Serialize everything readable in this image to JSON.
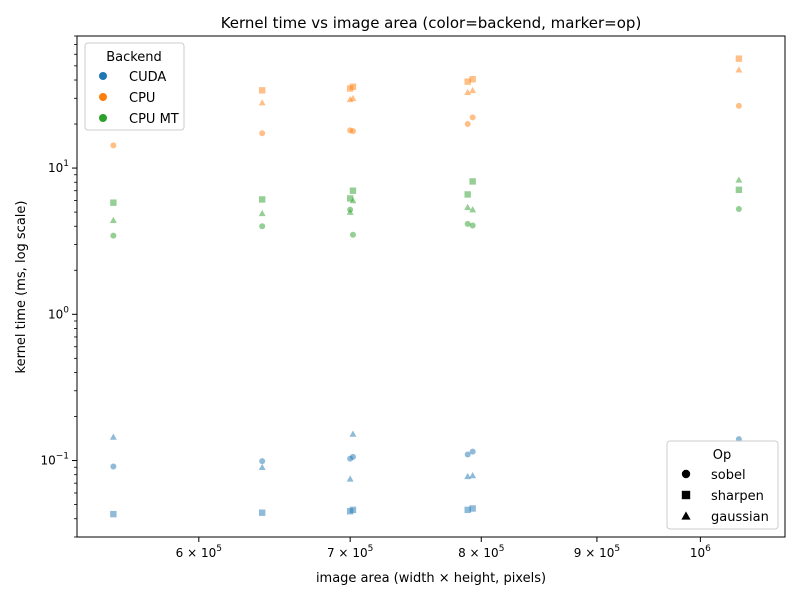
{
  "chart_data": {
    "type": "scatter",
    "title": "Kernel time vs image area (color=backend, marker=op)",
    "xlabel": "image area (width × height, pixels)",
    "ylabel": "kernel time (ms, log scale)",
    "xscale": "log",
    "yscale": "log",
    "xlim": [
      530000,
      1090000
    ],
    "ylim": [
      0.03,
      80
    ],
    "grid": false,
    "x_ticks": [
      {
        "value": 600000,
        "label": "6 × 10^5"
      },
      {
        "value": 700000,
        "label": "7 × 10^5"
      },
      {
        "value": 800000,
        "label": "8 × 10^5"
      },
      {
        "value": 900000,
        "label": "9 × 10^5"
      },
      {
        "value": 1000000,
        "label": "10^6"
      }
    ],
    "y_ticks": [
      {
        "value": 0.1,
        "label": "10^-1"
      },
      {
        "value": 1,
        "label": "10^0"
      },
      {
        "value": 10,
        "label": "10^1"
      }
    ],
    "legend_backend": {
      "title": "Backend",
      "placement": "upper-left",
      "entries": [
        {
          "label": "CUDA",
          "color": "#1f77b4"
        },
        {
          "label": "CPU",
          "color": "#ff7f0e"
        },
        {
          "label": "CPU MT",
          "color": "#2ca02c"
        }
      ]
    },
    "legend_op": {
      "title": "Op",
      "placement": "lower-right",
      "entries": [
        {
          "label": "sobel",
          "marker": "circle"
        },
        {
          "label": "sharpen",
          "marker": "square"
        },
        {
          "label": "gaussian",
          "marker": "triangle"
        }
      ]
    },
    "series": [
      {
        "backend": "CUDA",
        "op": "sobel",
        "color": "#1f77b4",
        "marker": "circle",
        "x": [
          550000,
          640000,
          700000,
          702000,
          789000,
          793000,
          1040000
        ],
        "y": [
          0.091,
          0.099,
          0.103,
          0.106,
          0.11,
          0.115,
          0.14
        ]
      },
      {
        "backend": "CUDA",
        "op": "sharpen",
        "color": "#1f77b4",
        "marker": "square",
        "x": [
          550000,
          640000,
          700000,
          702000,
          789000,
          793000
        ],
        "y": [
          0.043,
          0.044,
          0.045,
          0.046,
          0.046,
          0.047
        ]
      },
      {
        "backend": "CUDA",
        "op": "gaussian",
        "color": "#1f77b4",
        "marker": "triangle",
        "x": [
          550000,
          640000,
          700000,
          702000,
          789000,
          793000
        ],
        "y": [
          0.145,
          0.09,
          0.075,
          0.152,
          0.078,
          0.079
        ]
      },
      {
        "backend": "CPU",
        "op": "sobel",
        "color": "#ff7f0e",
        "marker": "circle",
        "x": [
          550000,
          640000,
          700000,
          702000,
          789000,
          793000,
          1040000
        ],
        "y": [
          14.3,
          17.3,
          18.1,
          17.9,
          20.0,
          22.2,
          26.6
        ]
      },
      {
        "backend": "CPU",
        "op": "sharpen",
        "color": "#ff7f0e",
        "marker": "square",
        "x": [
          640000,
          700000,
          702000,
          789000,
          793000,
          1040000
        ],
        "y": [
          34.0,
          35.0,
          36.0,
          39.0,
          40.5,
          56.0
        ]
      },
      {
        "backend": "CPU",
        "op": "gaussian",
        "color": "#ff7f0e",
        "marker": "triangle",
        "x": [
          640000,
          700000,
          702000,
          789000,
          793000,
          1040000
        ],
        "y": [
          28.0,
          29.5,
          30.0,
          33.0,
          34.0,
          47.0
        ]
      },
      {
        "backend": "CPU MT",
        "op": "sobel",
        "color": "#2ca02c",
        "marker": "circle",
        "x": [
          550000,
          640000,
          700000,
          702000,
          789000,
          793000,
          1040000
        ],
        "y": [
          3.45,
          4.0,
          5.2,
          3.5,
          4.15,
          4.05,
          5.25
        ]
      },
      {
        "backend": "CPU MT",
        "op": "sharpen",
        "color": "#2ca02c",
        "marker": "square",
        "x": [
          550000,
          640000,
          700000,
          702000,
          789000,
          793000,
          1040000
        ],
        "y": [
          5.8,
          6.1,
          6.2,
          7.0,
          6.6,
          8.1,
          7.1
        ]
      },
      {
        "backend": "CPU MT",
        "op": "gaussian",
        "color": "#2ca02c",
        "marker": "triangle",
        "x": [
          550000,
          640000,
          700000,
          702000,
          789000,
          793000,
          1040000
        ],
        "y": [
          4.4,
          4.9,
          5.0,
          6.0,
          5.4,
          5.2,
          8.3
        ]
      }
    ]
  }
}
